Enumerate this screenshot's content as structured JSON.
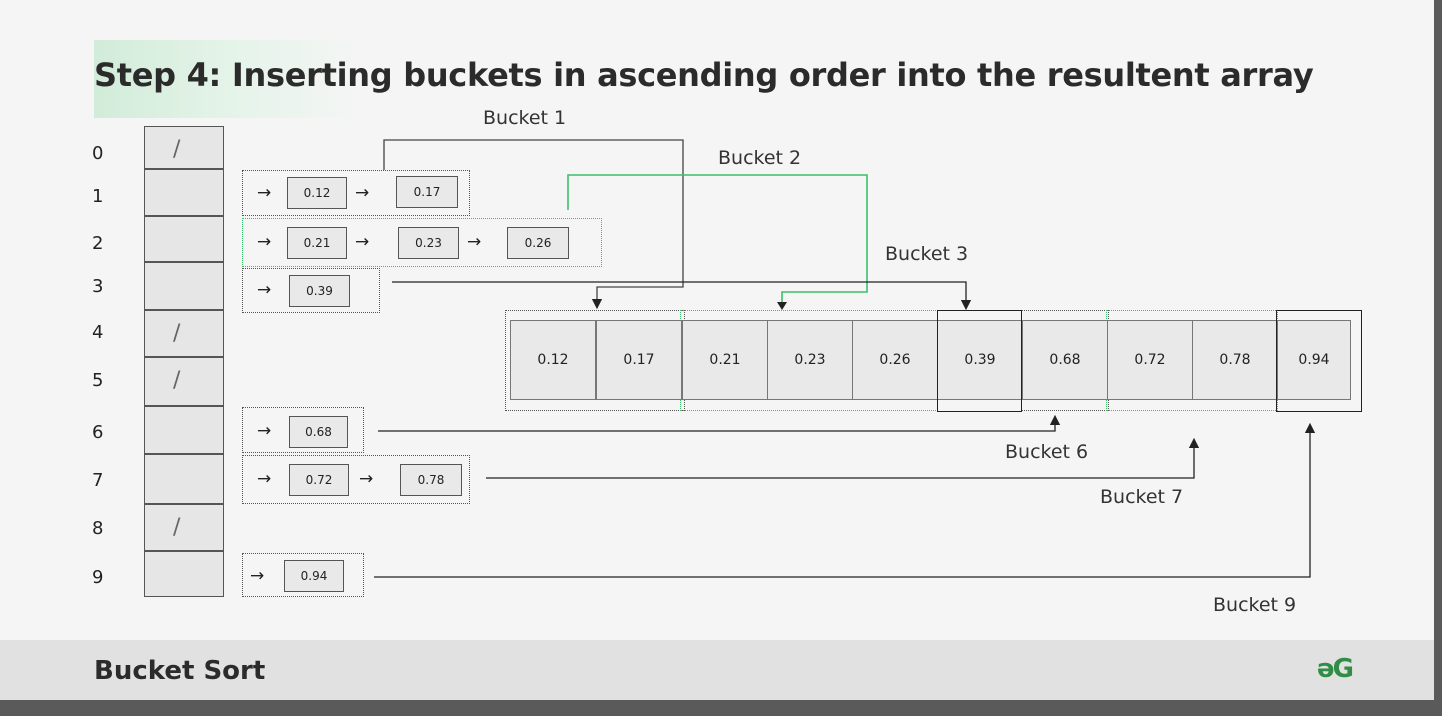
{
  "slide": {
    "title": "Step 4: Inserting buckets in ascending order into the resultent array",
    "footer_title": "Bucket Sort",
    "logo": "əG"
  },
  "colors": {
    "green": "#3cbf6a",
    "logo_green": "#2f8d46",
    "bucket_fill": "#e6e6e6"
  },
  "indices": [
    "0",
    "1",
    "2",
    "3",
    "4",
    "5",
    "6",
    "7",
    "8",
    "9"
  ],
  "empty_slot_mark": "/",
  "arrow_glyph": "→",
  "buckets": {
    "b1": {
      "label": "Bucket 1",
      "values": [
        "0.12",
        "0.17"
      ]
    },
    "b2": {
      "label": "Bucket 2",
      "values": [
        "0.21",
        "0.23",
        "0.26"
      ]
    },
    "b3": {
      "label": "Bucket 3",
      "values": [
        "0.39"
      ]
    },
    "b6": {
      "label": "Bucket 6",
      "values": [
        "0.68"
      ]
    },
    "b7": {
      "label": "Bucket 7",
      "values": [
        "0.72",
        "0.78"
      ]
    },
    "b9": {
      "label": "Bucket 9",
      "values": [
        "0.94"
      ]
    }
  },
  "result": [
    "0.12",
    "0.17",
    "0.21",
    "0.23",
    "0.26",
    "0.39",
    "0.68",
    "0.72",
    "0.78",
    "0.94"
  ],
  "caption": ""
}
